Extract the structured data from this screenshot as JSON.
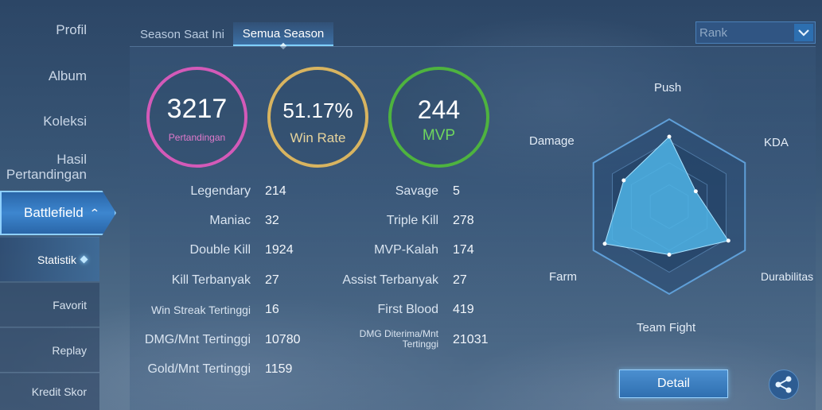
{
  "sidebar": {
    "items": [
      {
        "label": "Profil"
      },
      {
        "label": "Album"
      },
      {
        "label": "Koleksi"
      },
      {
        "label": "Hasil\nPertandingan"
      }
    ],
    "battlefield_label": "Battlefield",
    "subitems": [
      {
        "label": "Statistik"
      },
      {
        "label": "Favorit"
      },
      {
        "label": "Replay"
      },
      {
        "label": "Kredit Skor"
      }
    ]
  },
  "tabs": [
    {
      "label": "Season Saat Ini"
    },
    {
      "label": "Semua Season"
    }
  ],
  "filter": {
    "selected": "Rank"
  },
  "rings": [
    {
      "value": "3217",
      "label": "Pertandingan",
      "color": "#d35ab8"
    },
    {
      "value": "51.17%",
      "label": "Win Rate",
      "color": "#d8b460"
    },
    {
      "value": "244",
      "label": "MVP",
      "color": "#4eb33f"
    }
  ],
  "stats_left": [
    {
      "label": "Legendary",
      "value": "214"
    },
    {
      "label": "Maniac",
      "value": "32"
    },
    {
      "label": "Double Kill",
      "value": "1924"
    },
    {
      "label": "Kill Terbanyak",
      "value": "27"
    },
    {
      "label": "Win Streak Tertinggi",
      "value": "16"
    },
    {
      "label": "DMG/Mnt Tertinggi",
      "value": "10780"
    },
    {
      "label": "Gold/Mnt Tertinggi",
      "value": "1159"
    }
  ],
  "stats_right": [
    {
      "label": "Savage",
      "value": "5"
    },
    {
      "label": "Triple Kill",
      "value": "278"
    },
    {
      "label": "MVP-Kalah",
      "value": "174"
    },
    {
      "label": "Assist Terbanyak",
      "value": "27"
    },
    {
      "label": "First Blood",
      "value": "419"
    },
    {
      "label": "DMG Diterima/Mnt\nTertinggi",
      "value": "21031"
    }
  ],
  "radar": {
    "axes": [
      "Push",
      "KDA",
      "Durabilitas",
      "Team Fight",
      "Farm",
      "Damage"
    ],
    "values": [
      0.8,
      0.35,
      0.78,
      0.55,
      0.85,
      0.6
    ],
    "fill_color": "#4fb4e6"
  },
  "buttons": {
    "detail": "Detail"
  }
}
